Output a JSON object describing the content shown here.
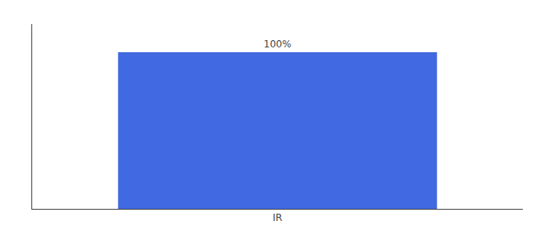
{
  "chart_data": {
    "type": "bar",
    "categories": [
      "IR"
    ],
    "values": [
      100
    ],
    "value_labels": [
      "100%"
    ],
    "data_labels": true,
    "color": "#4169e1",
    "ylim": [
      0,
      118
    ],
    "tick_labels": "x",
    "grid": false
  }
}
